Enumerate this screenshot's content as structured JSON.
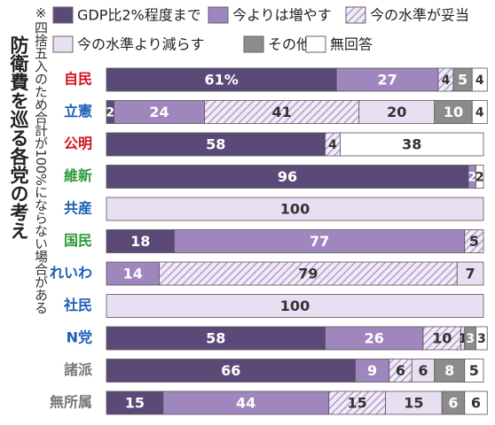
{
  "chart_data": {
    "type": "stacked-bar",
    "title": "防衛費を巡る各党の考え",
    "note": "※四捨五入のため合計が100%にならない場合がある",
    "categories": [
      "自民",
      "立憲",
      "公明",
      "維新",
      "共産",
      "国民",
      "れいわ",
      "社民",
      "N党",
      "諸派",
      "無所属"
    ],
    "label_colors": [
      "#d0121b",
      "#1d5fb5",
      "#d0121b",
      "#2e9a3a",
      "#1d5fb5",
      "#2e9a3a",
      "#1d5fb5",
      "#1d5fb5",
      "#1d5fb5",
      "#777777",
      "#777777"
    ],
    "series": [
      {
        "name": "GDP比2%程度まで",
        "color": "#5b4a78",
        "values": [
          61,
          2,
          58,
          96,
          null,
          18,
          null,
          null,
          58,
          66,
          15
        ],
        "value_labels": [
          "61%",
          "2",
          "58",
          "96",
          null,
          "18",
          null,
          null,
          "58",
          "66",
          "15"
        ]
      },
      {
        "name": "今よりは増やす",
        "color": "#9f86bd",
        "values": [
          27,
          24,
          null,
          2,
          null,
          77,
          14,
          null,
          26,
          9,
          44
        ]
      },
      {
        "name": "今の水準が妥当",
        "color": "#c9b8dd",
        "hatch": true,
        "values": [
          4,
          41,
          4,
          null,
          null,
          5,
          79,
          null,
          10,
          6,
          15
        ]
      },
      {
        "name": "今の水準より減らす",
        "color": "#e8e0f2",
        "values": [
          null,
          20,
          null,
          null,
          100,
          null,
          7,
          100,
          1,
          6,
          15
        ]
      },
      {
        "name": "その他",
        "color": "#8c8c8c",
        "values": [
          5,
          10,
          null,
          null,
          null,
          null,
          null,
          null,
          3,
          8,
          6
        ]
      },
      {
        "name": "無回答",
        "color": "#ffffff",
        "values": [
          4,
          4,
          38,
          2,
          null,
          null,
          null,
          null,
          3,
          5,
          6
        ]
      }
    ]
  }
}
